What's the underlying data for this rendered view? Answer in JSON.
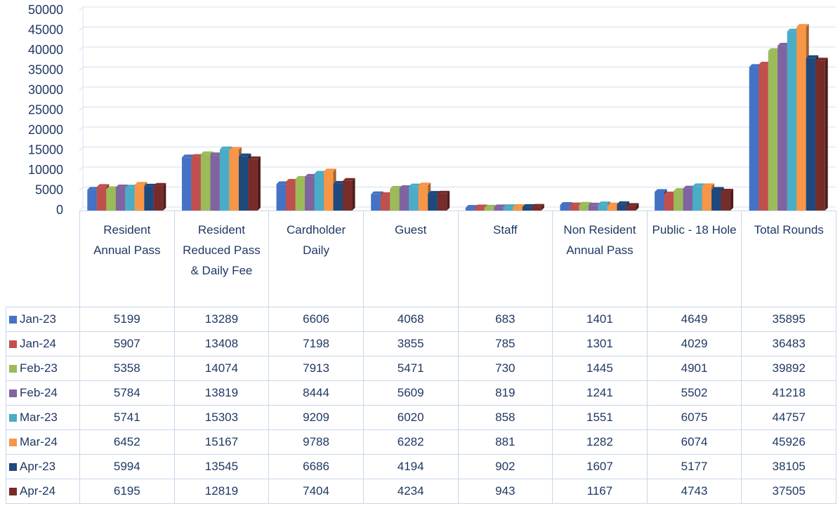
{
  "chart_data": {
    "type": "bar",
    "categories": [
      "Resident Annual Pass",
      "Resident Reduced Pass & Daily Fee",
      "Cardholder Daily",
      "Guest",
      "Staff",
      "Non Resident Annual Pass",
      "Public - 18 Hole",
      "Total Rounds"
    ],
    "series": [
      {
        "name": "Jan-23",
        "color": "#4472c4",
        "values": [
          5199,
          13289,
          6606,
          4068,
          683,
          1401,
          4649,
          35895
        ]
      },
      {
        "name": "Jan-24",
        "color": "#c0504d",
        "values": [
          5907,
          13408,
          7198,
          3855,
          785,
          1301,
          4029,
          36483
        ]
      },
      {
        "name": "Feb-23",
        "color": "#9bbb59",
        "values": [
          5358,
          14074,
          7913,
          5471,
          730,
          1445,
          4901,
          39892
        ]
      },
      {
        "name": "Feb-24",
        "color": "#8064a2",
        "values": [
          5784,
          13819,
          8444,
          5609,
          819,
          1241,
          5502,
          41218
        ]
      },
      {
        "name": "Mar-23",
        "color": "#4bacc6",
        "values": [
          5741,
          15303,
          9209,
          6020,
          858,
          1551,
          6075,
          44757
        ]
      },
      {
        "name": "Mar-24",
        "color": "#f79646",
        "values": [
          6452,
          15167,
          9788,
          6282,
          881,
          1282,
          6074,
          45926
        ]
      },
      {
        "name": "Apr-23",
        "color": "#1f497d",
        "values": [
          5994,
          13545,
          6686,
          4194,
          902,
          1607,
          5177,
          38105
        ]
      },
      {
        "name": "Apr-24",
        "color": "#772c2a",
        "values": [
          6195,
          12819,
          7404,
          4234,
          943,
          1167,
          4743,
          37505
        ]
      }
    ],
    "ylim": [
      0,
      50000
    ],
    "yticks": [
      0,
      5000,
      10000,
      15000,
      20000,
      25000,
      30000,
      35000,
      40000,
      45000,
      50000
    ],
    "grid": true
  }
}
